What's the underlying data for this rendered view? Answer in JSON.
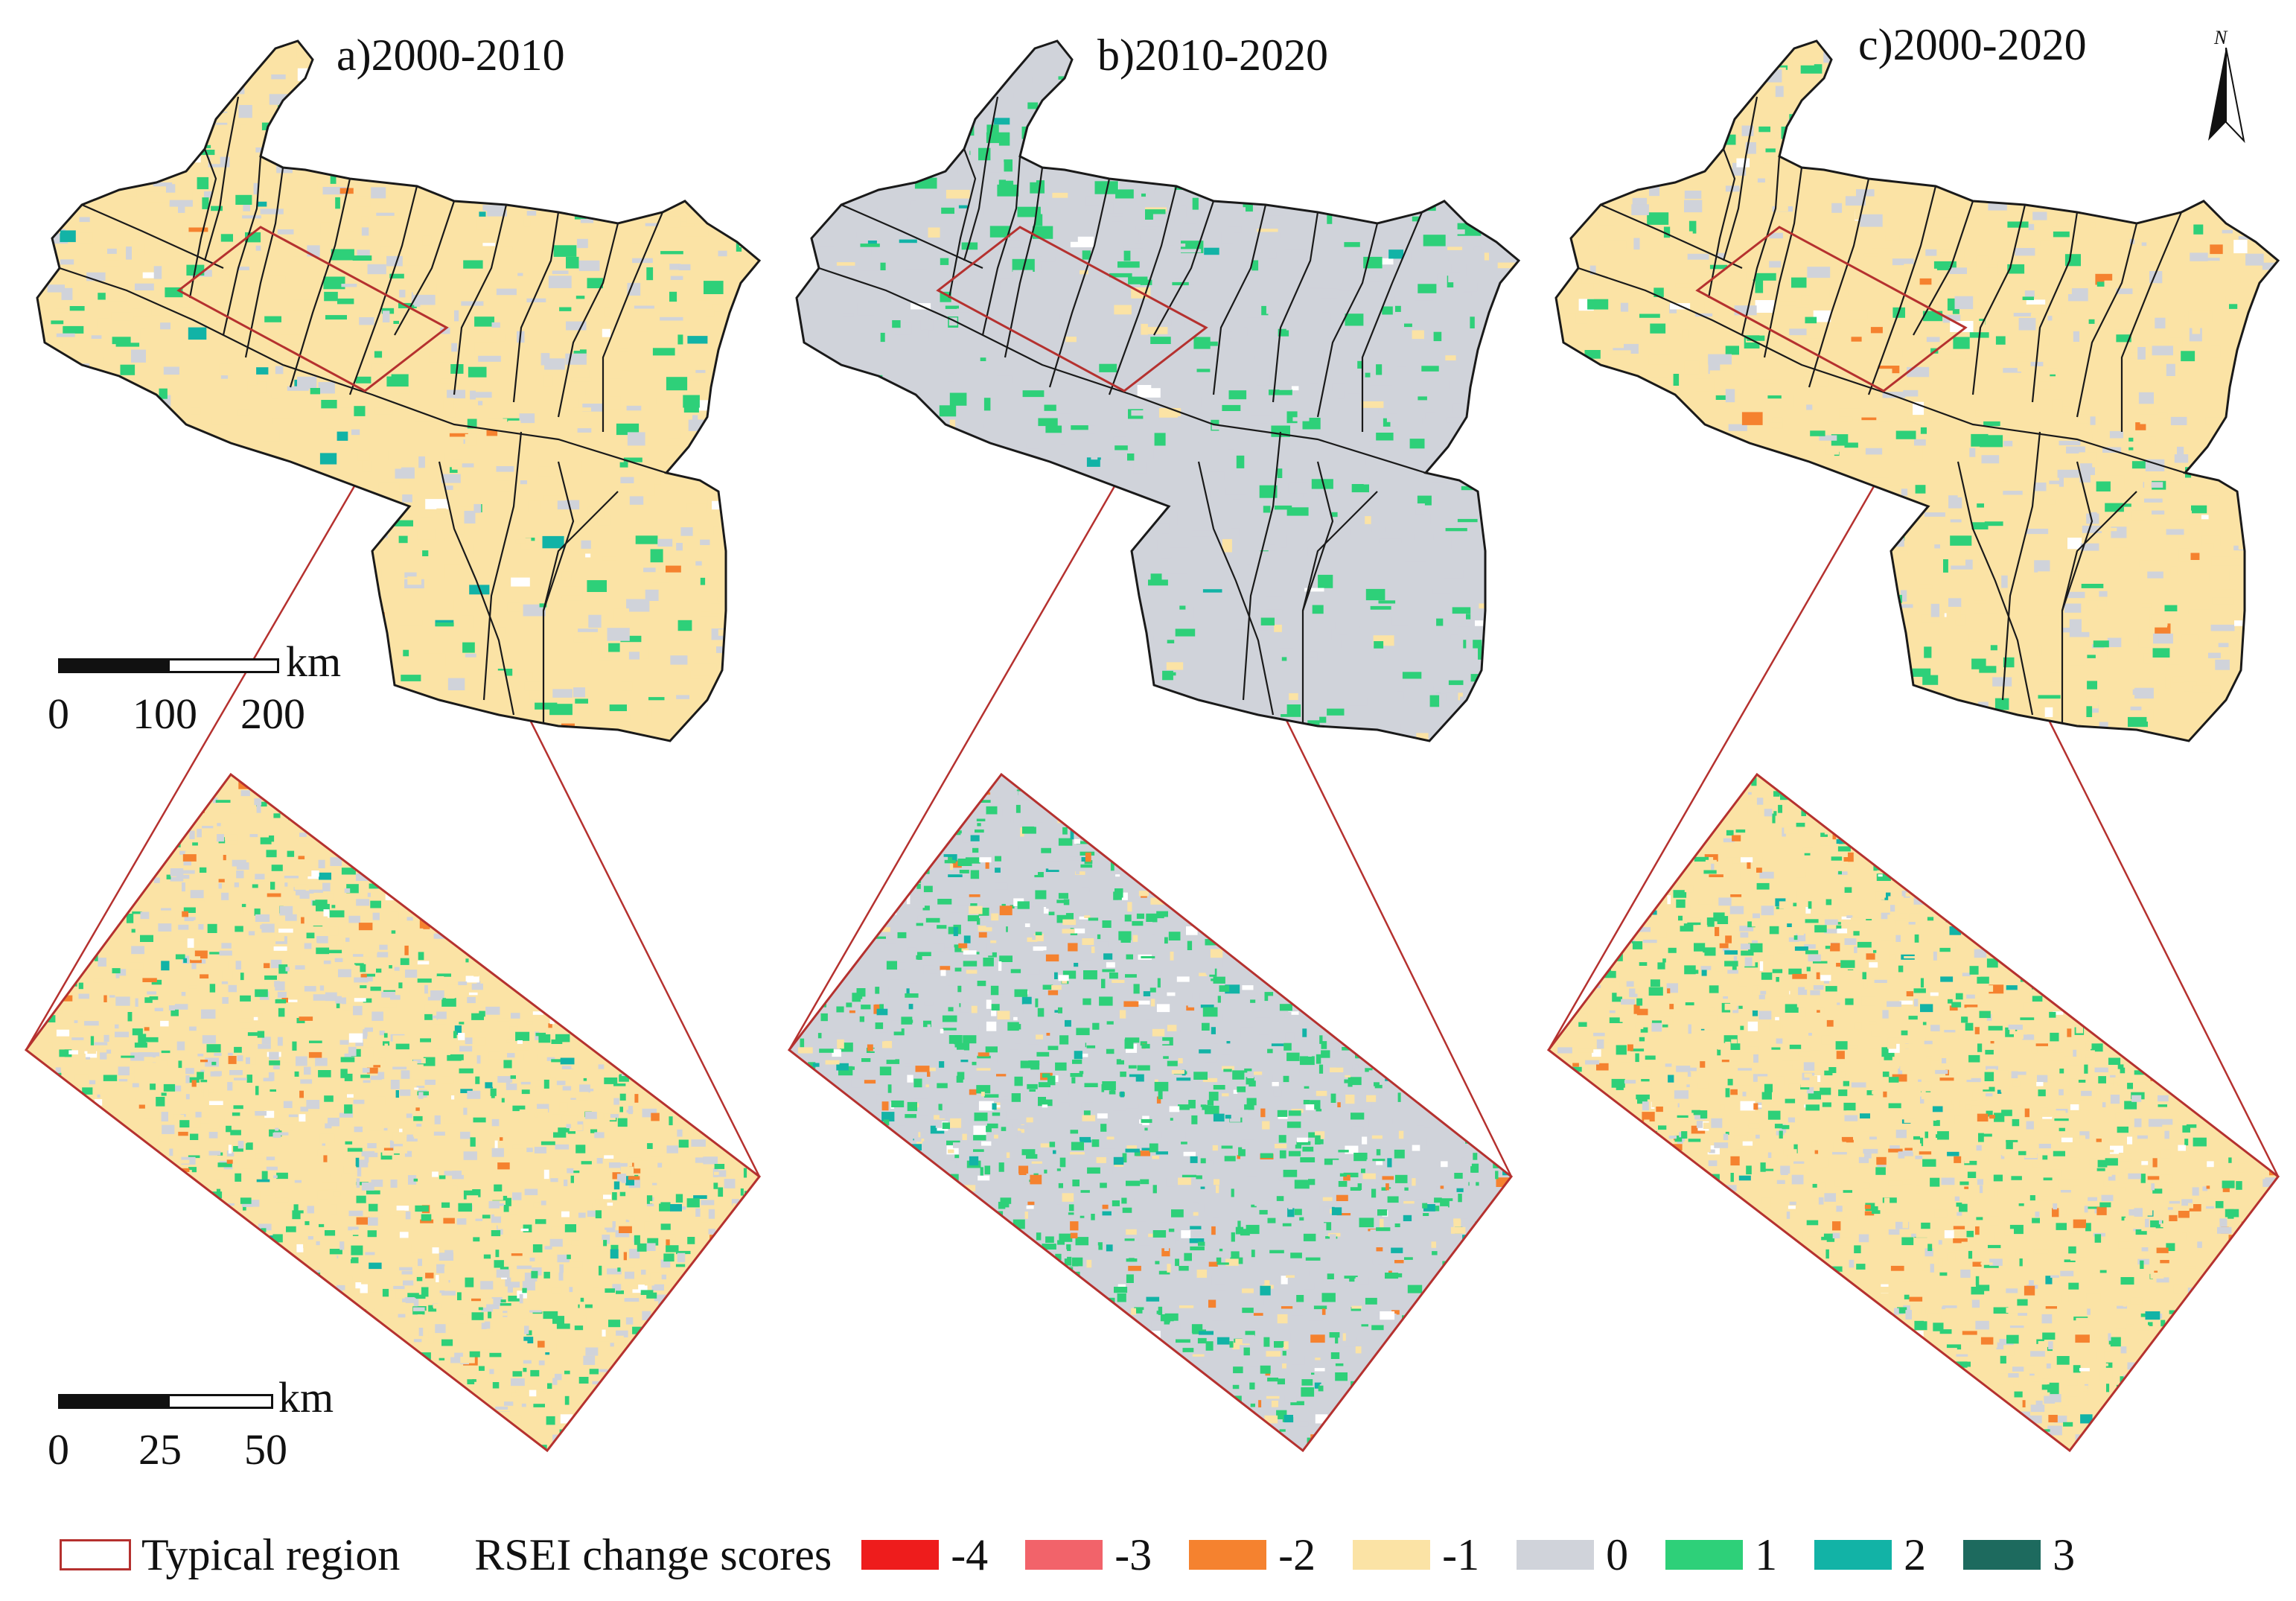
{
  "panels": [
    {
      "title": "a)2000-2010"
    },
    {
      "title": "b)2010-2020"
    },
    {
      "title": "c)2000-2020"
    }
  ],
  "north_label": "N",
  "scale_large": {
    "unit": "km",
    "ticks": [
      "0",
      "100",
      "200"
    ]
  },
  "scale_small": {
    "unit": "km",
    "ticks": [
      "0",
      "25",
      "50"
    ]
  },
  "legend": {
    "typical_region": "Typical region",
    "title": "RSEI change scores",
    "items": [
      {
        "label": "-4",
        "color": "#ee1c1c"
      },
      {
        "label": "-3",
        "color": "#f2636a"
      },
      {
        "label": "-2",
        "color": "#f5822f"
      },
      {
        "label": "-1",
        "color": "#fbe3a5"
      },
      {
        "label": "0",
        "color": "#d0d3da"
      },
      {
        "label": "1",
        "color": "#2ed079"
      },
      {
        "label": "2",
        "color": "#12b3a6"
      },
      {
        "label": "3",
        "color": "#1d6a5e"
      }
    ]
  },
  "colors": {
    "outline": "#b5312f",
    "boundary": "#1a1a1a"
  }
}
